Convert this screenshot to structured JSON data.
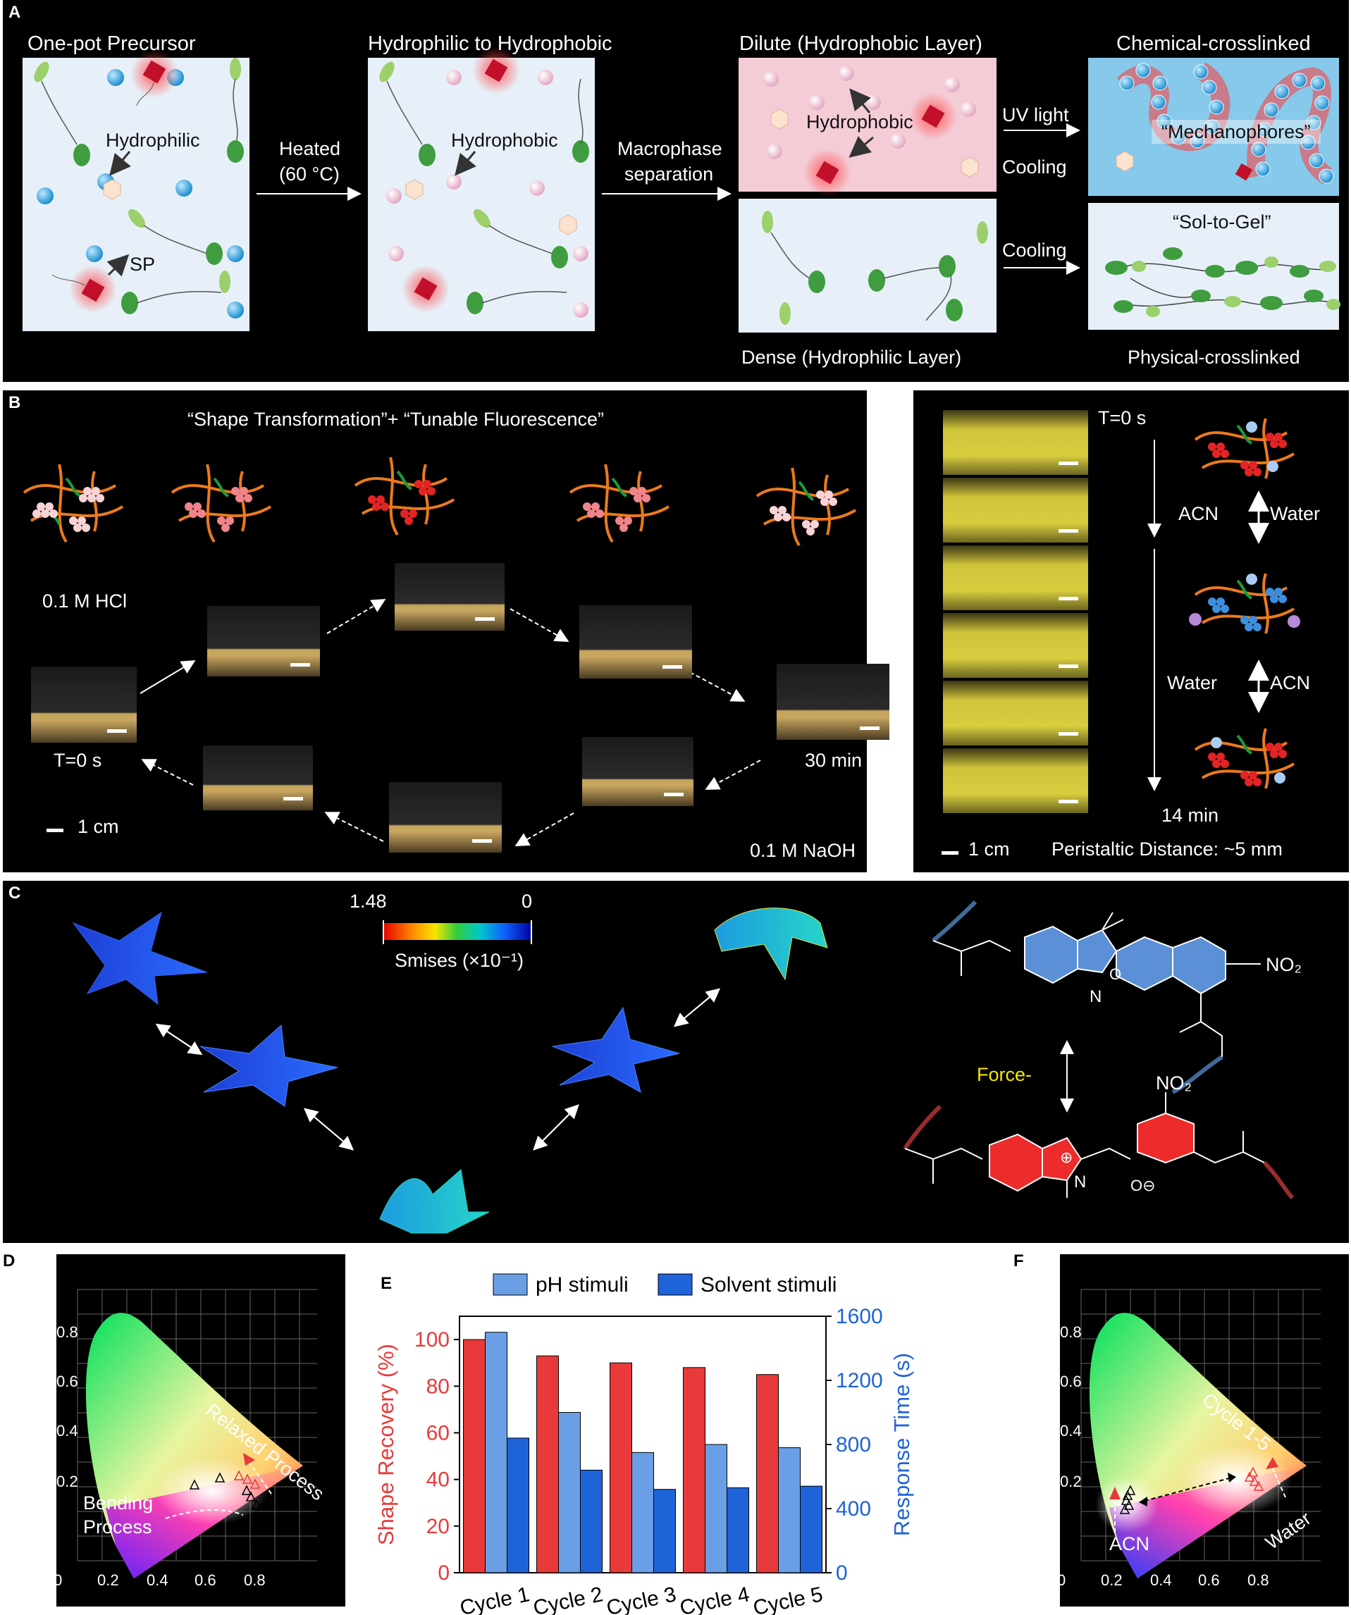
{
  "panel_a": {
    "label": "A",
    "step1_title": "One-pot Precursor",
    "step2_title": "Hydrophilic to Hydrophobic",
    "step3_title": "Dilute (Hydrophobic Layer)",
    "step4_title": "Chemical-crosslinked",
    "hydrophilic": "Hydrophilic",
    "sp": "SP",
    "heated": "Heated",
    "temp": "(60 °C)",
    "hydrophobic": "Hydrophobic",
    "hydrophobic2": "Hydrophobic",
    "macro1": "Macrophase",
    "macro2": "separation",
    "uv": "UV light",
    "cooling1": "Cooling",
    "cooling2": "Cooling",
    "mechanophores": "“Mechanophores”",
    "sol_gel": "“Sol-to-Gel”",
    "dense": "Dense (Hydrophilic Layer)",
    "physical": "Physical-crosslinked"
  },
  "panel_b": {
    "label": "B",
    "title": "“Shape Transformation”+ “Tunable Fluorescence”",
    "hcl": "0.1 M HCl",
    "t0": "T=0 s",
    "t30": "30 min",
    "naoh": "0.1 M NaOH",
    "scale": "1 cm"
  },
  "panel_b2": {
    "t0": "T=0 s",
    "acn1": "ACN",
    "water1": "Water",
    "water2": "Water",
    "acn2": "ACN",
    "t14": "14 min",
    "scale": "1 cm",
    "distance": "Peristaltic Distance: ~5 mm"
  },
  "panel_c": {
    "label": "C",
    "cmax": "1.48",
    "cmin": "0",
    "smises": "Smises (×10⁻¹)",
    "force": "Force-",
    "no2_top": "NO₂",
    "no2_bot": "NO₂"
  },
  "panel_d": {
    "label": "D",
    "relaxed": "Relaxed Process",
    "bending1": "Bending",
    "bending2": "Process",
    "yticks": [
      "0.8",
      "0.6",
      "0.4",
      "0.2"
    ],
    "xticks": [
      "0",
      "0.2",
      "0.4",
      "0.6",
      "0.8"
    ]
  },
  "panel_e": {
    "label": "E",
    "colors": {
      "shape": "#e83a3a",
      "ph": "#6a9fe6",
      "solvent": "#1f63d8"
    }
  },
  "chart_data": [
    {
      "type": "bar",
      "categories": [
        "Cycle 1",
        "Cycle 2",
        "Cycle 3",
        "Cycle 4",
        "Cycle 5"
      ],
      "series": [
        {
          "name": "",
          "axis": "left",
          "values": [
            100,
            93,
            90,
            88,
            85
          ]
        },
        {
          "name": "pH stimuli",
          "axis": "right",
          "values": [
            1500,
            1000,
            750,
            800,
            780
          ]
        },
        {
          "name": "Solvent stimuli",
          "axis": "right",
          "values": [
            840,
            640,
            520,
            530,
            540
          ]
        }
      ],
      "ylabel": "Shape Recovery (%)",
      "y2label": "Response Time (s)",
      "ylim": [
        0,
        110
      ],
      "y2lim": [
        0,
        1600
      ],
      "yticks": [
        0,
        20,
        40,
        60,
        80,
        100
      ],
      "y2ticks": [
        0,
        400,
        800,
        1200,
        1600
      ],
      "legend": "top"
    }
  ],
  "panel_f": {
    "label": "F",
    "cycle": "Cycle 1-5",
    "acn": "ACN",
    "water": "Water",
    "yticks": [
      "0.8",
      "0.6",
      "0.4",
      "0.2"
    ],
    "xticks": [
      "0",
      "0.2",
      "0.4",
      "0.6",
      "0.8"
    ]
  }
}
